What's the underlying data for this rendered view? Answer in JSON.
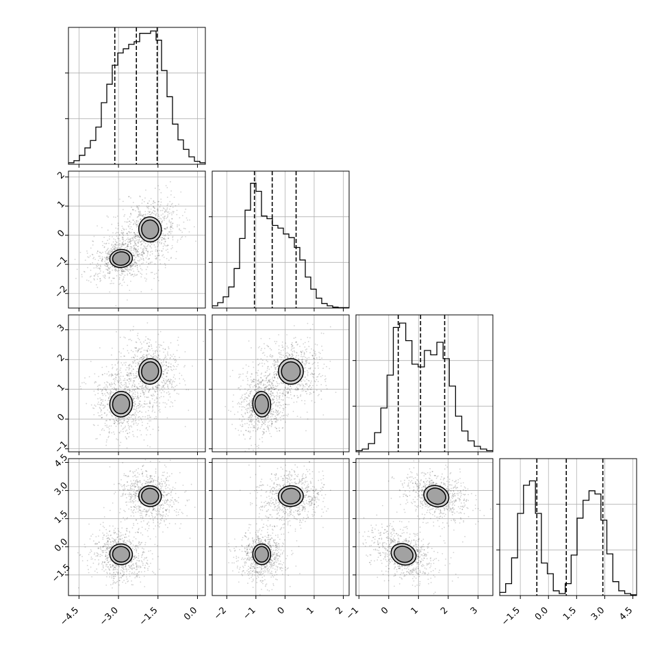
{
  "chart_data": {
    "type": "corner",
    "title": "",
    "n_params": 4,
    "params": [
      {
        "label": "",
        "range": [
          -4.9,
          0.3
        ],
        "ticks": [
          -4.5,
          -3.0,
          -1.5,
          0.0
        ],
        "tick_labels": [
          "−4.5",
          "−3.0",
          "−1.5",
          "0.0"
        ],
        "quantiles": [
          -3.14,
          -2.32,
          -1.53
        ],
        "hist_max": 4.6,
        "hist": [
          0.05,
          0.12,
          0.3,
          0.55,
          0.8,
          1.25,
          2.07,
          2.69,
          3.33,
          3.74,
          3.88,
          4.03,
          4.12,
          4.4,
          4.4,
          4.48,
          4.17,
          3.15,
          2.27,
          1.35,
          0.82,
          0.5,
          0.25,
          0.1,
          0.05
        ]
      },
      {
        "label": "",
        "range": [
          -2.5,
          2.2
        ],
        "ticks": [
          -2,
          -1,
          0,
          1,
          2
        ],
        "tick_labels": [
          "−2",
          "−1",
          "0",
          "1",
          "2"
        ],
        "quantiles": [
          -1.05,
          -0.44,
          0.38
        ],
        "hist_max": 3.05,
        "hist": [
          0.05,
          0.12,
          0.25,
          0.47,
          0.88,
          1.55,
          2.18,
          2.78,
          2.6,
          2.05,
          1.99,
          1.84,
          1.78,
          1.65,
          1.57,
          1.35,
          1.07,
          0.69,
          0.42,
          0.22,
          0.1,
          0.05,
          0.02,
          0.01,
          0.01
        ]
      },
      {
        "label": "",
        "range": [
          -1.1,
          3.5
        ],
        "ticks": [
          -1,
          0,
          1,
          2,
          3
        ],
        "tick_labels": [
          "−1",
          "0",
          "1",
          "2",
          "3"
        ],
        "quantiles": [
          0.32,
          1.07,
          1.88
        ],
        "hist_max": 2.5,
        "hist": [
          0.02,
          0.05,
          0.15,
          0.35,
          0.8,
          1.4,
          2.27,
          2.35,
          2.03,
          1.6,
          1.55,
          1.85,
          1.77,
          2.0,
          1.7,
          1.2,
          0.65,
          0.38,
          0.2,
          0.1,
          0.05,
          0.02
        ]
      },
      {
        "label": "",
        "range": [
          -2.6,
          4.7
        ],
        "ticks": [
          -1.5,
          0.0,
          1.5,
          3.0,
          4.5
        ],
        "tick_labels": [
          "−1.5",
          "0.0",
          "1.5",
          "3.0",
          "4.5"
        ],
        "quantiles": [
          -0.62,
          0.95,
          2.9
        ],
        "hist_max": 3.45,
        "hist": [
          0.08,
          0.3,
          0.95,
          2.07,
          2.78,
          2.89,
          2.07,
          0.82,
          0.55,
          0.12,
          0.05,
          0.3,
          1.02,
          1.95,
          2.4,
          2.64,
          2.56,
          1.9,
          1.05,
          0.35,
          0.12,
          0.05,
          0.02
        ]
      }
    ],
    "components": [
      {
        "weight": 0.5,
        "mean": [
          -2.9,
          -0.8,
          0.5,
          -0.4
        ],
        "std": [
          0.35,
          0.25,
          0.35,
          0.45
        ]
      },
      {
        "weight": 0.5,
        "mean": [
          -1.8,
          0.2,
          1.6,
          2.7
        ],
        "std": [
          0.35,
          0.35,
          0.35,
          0.45
        ]
      }
    ],
    "correlations": {
      "1-0": 0.1,
      "2-0": -0.1,
      "2-1": 0.05,
      "3-0": -0.1,
      "3-1": 0.05,
      "3-2": -0.4
    },
    "contour_levels": [
      0.5,
      1.0,
      1.5,
      2.0
    ],
    "grid": true,
    "colors": {
      "lines": "#000000",
      "grid": "#b0b0b0",
      "points": "#000000",
      "quantile": "#000000"
    }
  }
}
